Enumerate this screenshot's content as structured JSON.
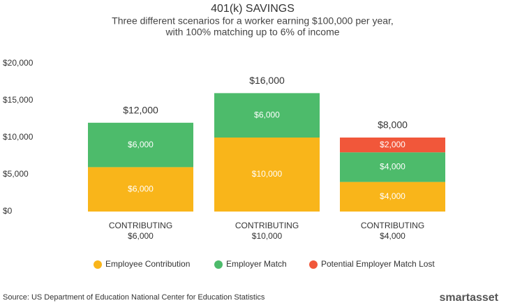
{
  "chart_data": {
    "type": "stacked-bar",
    "title": "401(k) SAVINGS",
    "subtitle": [
      "Three different scenarios for a worker earning $100,000 per year,",
      "with 100% matching up to 6% of income"
    ],
    "categories": [
      [
        "CONTRIBUTING",
        "$6,000"
      ],
      [
        "CONTRIBUTING",
        "$10,000"
      ],
      [
        "CONTRIBUTING",
        "$4,000"
      ]
    ],
    "series": [
      {
        "name": "Employee Contribution",
        "color": "#f9b51a",
        "values": [
          6000,
          10000,
          4000
        ],
        "value_labels": [
          "$6,000",
          "$10,000",
          "$4,000"
        ]
      },
      {
        "name": "Employer Match",
        "color": "#4dbb6b",
        "values": [
          6000,
          6000,
          4000
        ],
        "value_labels": [
          "$6,000",
          "$6,000",
          "$4,000"
        ]
      },
      {
        "name": "Potential Employer Match Lost",
        "color": "#f1573a",
        "values": [
          null,
          null,
          2000
        ],
        "value_labels": [
          null,
          null,
          "$2,000"
        ]
      }
    ],
    "totals": {
      "values": [
        12000,
        16000,
        8000
      ],
      "value_labels": [
        "$12,000",
        "$16,000",
        "$8,000"
      ]
    },
    "ylim": [
      0,
      20000
    ],
    "yticks": [
      {
        "value": 0,
        "label": "$0"
      },
      {
        "value": 5000,
        "label": "$5,000"
      },
      {
        "value": 10000,
        "label": "$10,000"
      },
      {
        "value": 15000,
        "label": "$15,000"
      },
      {
        "value": 20000,
        "label": "$20,000"
      }
    ],
    "grid": false,
    "legend": "bottom",
    "source": "Source: US Department of Education National Center for Education Statistics",
    "brand": "smartasset"
  }
}
